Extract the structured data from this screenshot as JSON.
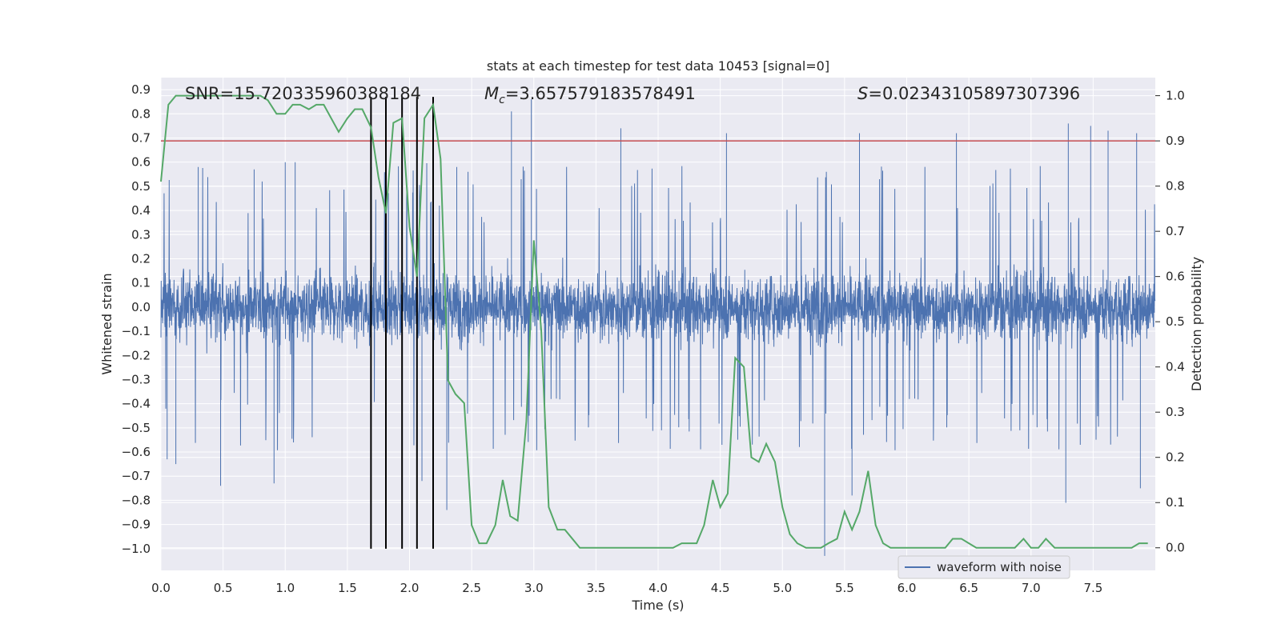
{
  "chart_data": {
    "type": "line",
    "title": "stats at each timestep for test data 10453 [signal=0]",
    "xlabel": "Time (s)",
    "ylabel": "Whitened strain",
    "ylabel_right": "Detection probability",
    "xlim": [
      0.0,
      8.0
    ],
    "ylim": [
      -1.09,
      0.95
    ],
    "ylim_right": [
      -0.05,
      1.04
    ],
    "x_ticks": [
      0.0,
      0.5,
      1.0,
      1.5,
      2.0,
      2.5,
      3.0,
      3.5,
      4.0,
      4.5,
      5.0,
      5.5,
      6.0,
      6.5,
      7.0,
      7.5
    ],
    "x_tick_labels": [
      "0.0",
      "0.5",
      "1.0",
      "1.5",
      "2.0",
      "2.5",
      "3.0",
      "3.5",
      "4.0",
      "4.5",
      "5.0",
      "5.5",
      "6.0",
      "6.5",
      "7.0",
      "7.5"
    ],
    "y_ticks": [
      0.9,
      0.8,
      0.7,
      0.6,
      0.5,
      0.4,
      0.3,
      0.2,
      0.1,
      0.0,
      -0.1,
      -0.2,
      -0.3,
      -0.4,
      -0.5,
      -0.6,
      -0.7,
      -0.8,
      -0.9,
      -1.0
    ],
    "y_tick_labels": [
      "0.9",
      "0.8",
      "0.7",
      "0.6",
      "0.5",
      "0.4",
      "0.3",
      "0.2",
      "0.1",
      "0.0",
      "−0.1",
      "−0.2",
      "−0.3",
      "−0.4",
      "−0.5",
      "−0.6",
      "−0.7",
      "−0.8",
      "−0.9",
      "−1.0"
    ],
    "y_right_ticks": [
      1.0,
      0.9,
      0.8,
      0.7,
      0.6,
      0.5,
      0.4,
      0.3,
      0.2,
      0.1,
      0.0
    ],
    "y_right_tick_labels": [
      "1.0",
      "0.9",
      "0.8",
      "0.7",
      "0.6",
      "0.5",
      "0.4",
      "0.3",
      "0.2",
      "0.1",
      "0.0"
    ],
    "grid": true,
    "legend": {
      "placement": "lower-center-right",
      "entries": [
        "waveform with noise"
      ]
    },
    "stats": {
      "snr_label": "SNR=15.720335960388184",
      "mc_symbol": "M",
      "mc_subscript": "c",
      "mc_value": "=3.657579183578491",
      "s_symbol": "S",
      "s_value": "=0.02343105897307396"
    },
    "threshold": 0.9,
    "vertical_markers": [
      1.69,
      1.81,
      1.94,
      2.06,
      2.19
    ],
    "waveform_envelope": {
      "seed": 10453,
      "dense_band": 0.3,
      "typical_peak": 0.55,
      "spikes_up": [
        [
          0.3,
          0.58
        ],
        [
          0.75,
          0.57
        ],
        [
          1.0,
          0.6
        ],
        [
          2.98,
          0.86
        ],
        [
          2.82,
          0.81
        ],
        [
          3.7,
          0.74
        ],
        [
          4.55,
          0.72
        ],
        [
          5.62,
          0.72
        ],
        [
          6.4,
          0.72
        ],
        [
          7.3,
          0.76
        ],
        [
          7.48,
          0.75
        ],
        [
          7.62,
          0.73
        ],
        [
          7.85,
          0.72
        ],
        [
          1.08,
          0.6
        ],
        [
          2.38,
          0.58
        ]
      ],
      "spikes_down": [
        [
          0.48,
          -0.74
        ],
        [
          0.91,
          -0.73
        ],
        [
          2.3,
          -0.84
        ],
        [
          5.34,
          -1.03
        ],
        [
          5.56,
          -0.78
        ],
        [
          7.28,
          -0.81
        ],
        [
          7.88,
          -0.75
        ],
        [
          0.05,
          -0.63
        ],
        [
          0.12,
          -0.65
        ],
        [
          2.1,
          -0.72
        ]
      ]
    },
    "series": [
      {
        "name": "detection probability",
        "axis": "right",
        "color": "#55a868",
        "x": [
          0.0,
          0.06,
          0.12,
          0.2,
          0.3,
          0.4,
          0.5,
          0.6,
          0.7,
          0.8,
          0.86,
          0.93,
          1.0,
          1.06,
          1.12,
          1.19,
          1.25,
          1.31,
          1.37,
          1.43,
          1.5,
          1.56,
          1.62,
          1.69,
          1.75,
          1.81,
          1.87,
          1.94,
          2.0,
          2.06,
          2.12,
          2.19,
          2.25,
          2.31,
          2.37,
          2.44,
          2.5,
          2.56,
          2.62,
          2.69,
          2.75,
          2.81,
          2.87,
          2.94,
          3.0,
          3.06,
          3.12,
          3.19,
          3.25,
          3.31,
          3.37,
          3.44,
          3.5,
          3.56,
          3.62,
          3.69,
          3.75,
          3.81,
          3.87,
          3.94,
          4.0,
          4.06,
          4.12,
          4.19,
          4.25,
          4.31,
          4.37,
          4.44,
          4.5,
          4.56,
          4.62,
          4.69,
          4.75,
          4.81,
          4.87,
          4.94,
          5.0,
          5.06,
          5.12,
          5.19,
          5.25,
          5.31,
          5.37,
          5.44,
          5.5,
          5.56,
          5.62,
          5.69,
          5.75,
          5.81,
          5.87,
          5.94,
          6.0,
          6.06,
          6.12,
          6.19,
          6.25,
          6.31,
          6.37,
          6.44,
          6.5,
          6.56,
          6.62,
          6.69,
          6.75,
          6.81,
          6.87,
          6.94,
          7.0,
          7.06,
          7.12,
          7.19,
          7.25,
          7.31,
          7.37,
          7.44,
          7.5,
          7.56,
          7.62,
          7.69,
          7.75,
          7.81,
          7.87,
          7.94
        ],
        "values": [
          0.81,
          0.98,
          1.0,
          1.0,
          1.0,
          1.0,
          1.0,
          1.0,
          1.0,
          1.0,
          0.99,
          0.96,
          0.96,
          0.98,
          0.98,
          0.97,
          0.98,
          0.98,
          0.95,
          0.92,
          0.95,
          0.97,
          0.97,
          0.93,
          0.82,
          0.74,
          0.94,
          0.95,
          0.71,
          0.6,
          0.95,
          0.98,
          0.86,
          0.37,
          0.34,
          0.32,
          0.05,
          0.01,
          0.01,
          0.05,
          0.15,
          0.07,
          0.06,
          0.28,
          0.68,
          0.48,
          0.09,
          0.04,
          0.04,
          0.02,
          0.0,
          0.0,
          0.0,
          0.0,
          0.0,
          0.0,
          0.0,
          0.0,
          0.0,
          0.0,
          0.0,
          0.0,
          0.0,
          0.01,
          0.01,
          0.01,
          0.05,
          0.15,
          0.09,
          0.12,
          0.42,
          0.4,
          0.2,
          0.19,
          0.23,
          0.19,
          0.09,
          0.03,
          0.01,
          0.0,
          0.0,
          0.0,
          0.01,
          0.02,
          0.08,
          0.04,
          0.08,
          0.17,
          0.05,
          0.01,
          0.0,
          0.0,
          0.0,
          0.0,
          0.0,
          0.0,
          0.0,
          0.0,
          0.02,
          0.02,
          0.01,
          0.0,
          0.0,
          0.0,
          0.0,
          0.0,
          0.0,
          0.02,
          0.0,
          0.0,
          0.02,
          0.0,
          0.0,
          0.0,
          0.0,
          0.0,
          0.0,
          0.0,
          0.0,
          0.0,
          0.0,
          0.0,
          0.01,
          0.01
        ]
      }
    ]
  },
  "colors": {
    "background": "#ffffff",
    "plot_area": "#eaeaf2",
    "grid": "#ffffff",
    "waveform": "#4c72b0",
    "probability": "#55a868",
    "threshold": "#c44e52",
    "markers": "#000000"
  }
}
